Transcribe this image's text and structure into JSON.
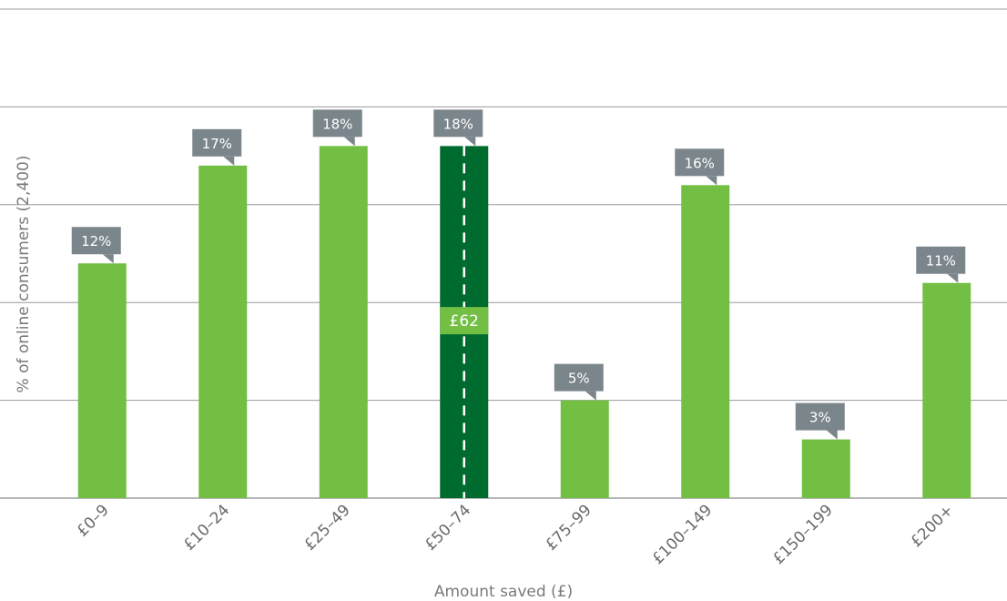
{
  "chart_data": {
    "type": "bar",
    "title": "",
    "xlabel": "Amount saved (£)",
    "ylabel": "% of online consumers (2,400)",
    "categories": [
      "£0–9",
      "£10–24",
      "£25–49",
      "£50–74",
      "£75–99",
      "£100–149",
      "£150–199",
      "£200+"
    ],
    "values": [
      12,
      17,
      18,
      18,
      5,
      16,
      3,
      11
    ],
    "data_labels": [
      "12%",
      "17%",
      "18%",
      "18%",
      "5%",
      "16%",
      "3%",
      "11%"
    ],
    "ylim": [
      0,
      25
    ],
    "grid": true,
    "highlight_category": "£50–74",
    "median_marker": {
      "category": "£50–74",
      "label": "£62"
    },
    "colors": {
      "bar": "#72bf44",
      "highlight_bar": "#006b2e",
      "callout": "#7b868c",
      "median_label_bg": "#72bf44",
      "grid": "#9a9a9a"
    }
  }
}
